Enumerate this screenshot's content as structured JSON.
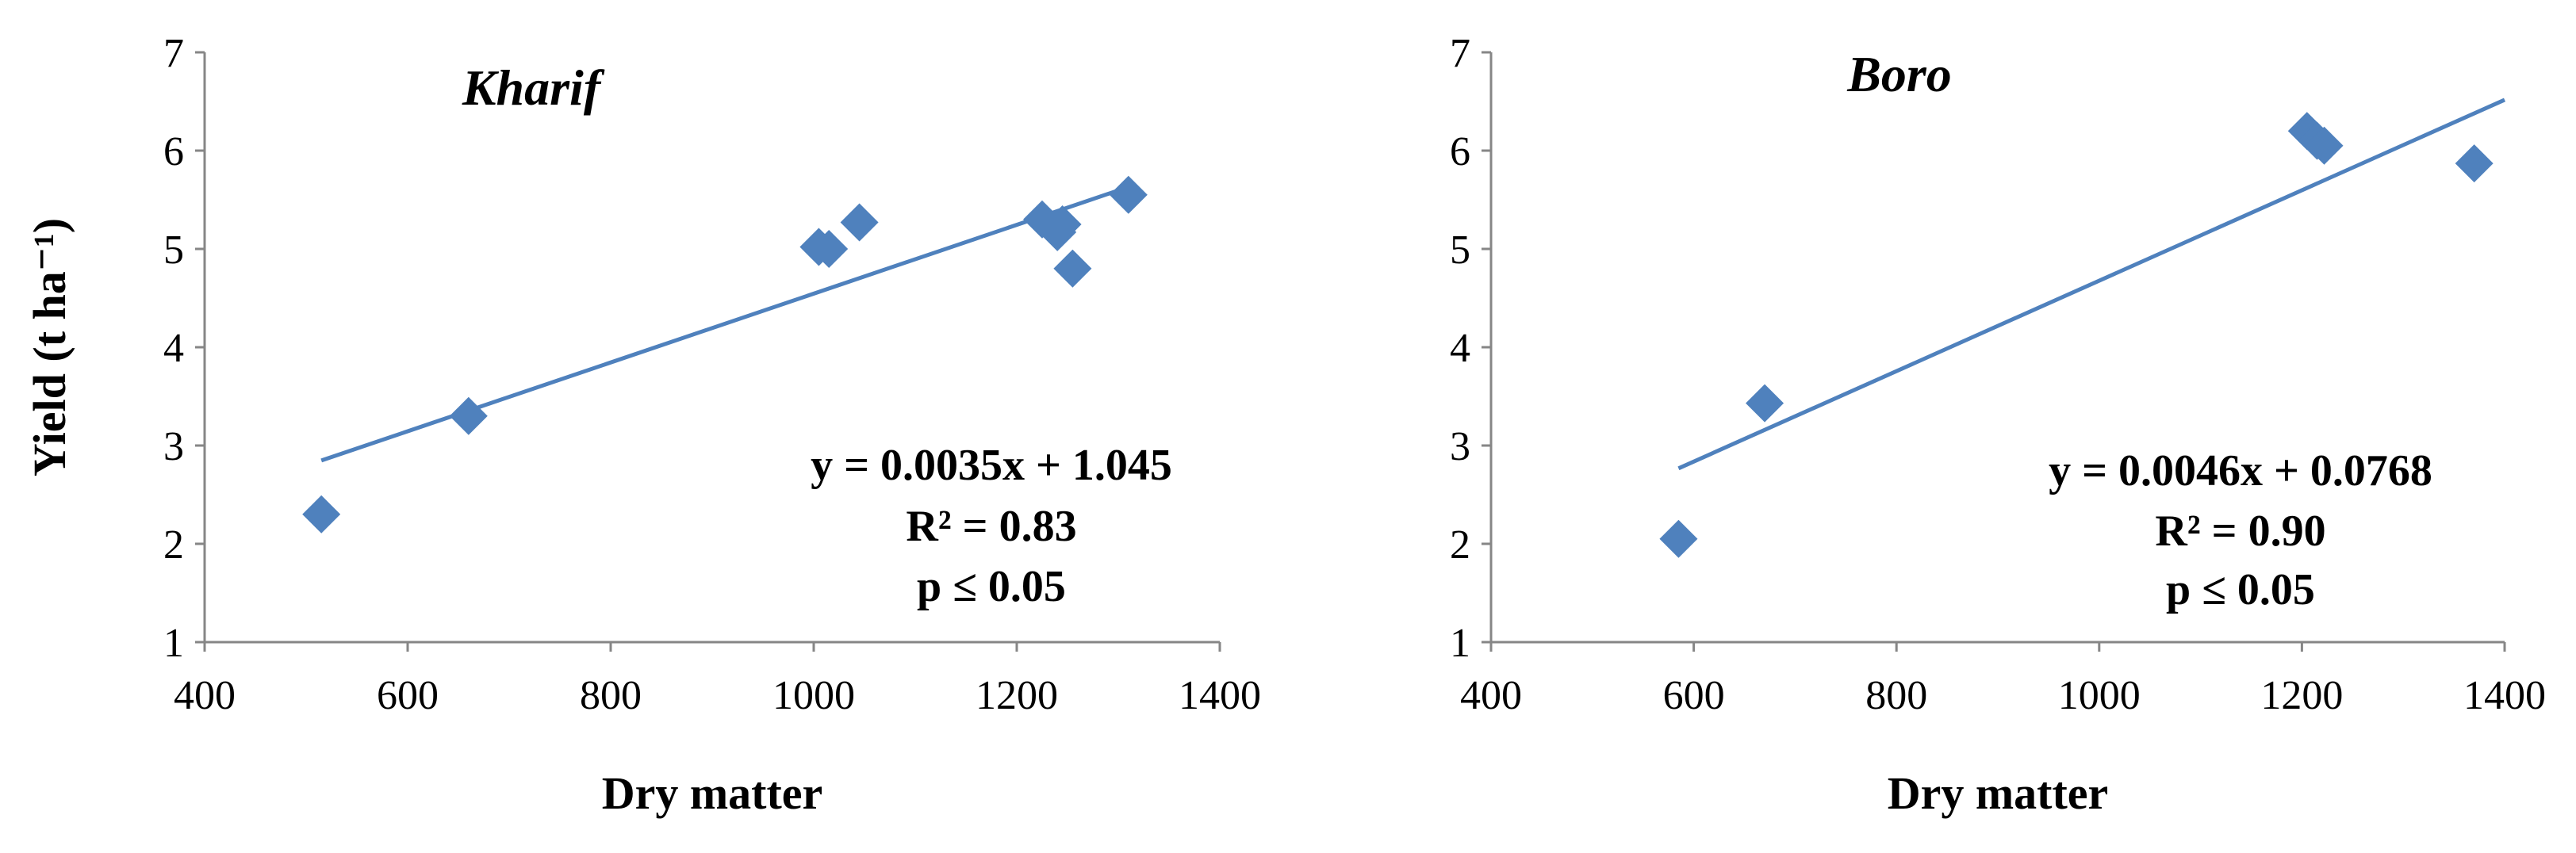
{
  "chart_data": [
    {
      "type": "scatter",
      "title": "Kharif",
      "xlabel": "Dry matter",
      "ylabel": "Yield (t ha⁻¹)",
      "xlim": [
        400,
        1400
      ],
      "ylim": [
        1,
        7
      ],
      "xticks": [
        400,
        600,
        800,
        1000,
        1200,
        1400
      ],
      "yticks": [
        1,
        2,
        3,
        4,
        5,
        6,
        7
      ],
      "grid": false,
      "marker_color": "#4F81BD",
      "trendline_color": "#4F81BD",
      "points": [
        {
          "x": 515,
          "y": 2.3
        },
        {
          "x": 660,
          "y": 3.3
        },
        {
          "x": 1005,
          "y": 5.02
        },
        {
          "x": 1015,
          "y": 5.0
        },
        {
          "x": 1045,
          "y": 5.27
        },
        {
          "x": 1225,
          "y": 5.3
        },
        {
          "x": 1240,
          "y": 5.17
        },
        {
          "x": 1245,
          "y": 5.25
        },
        {
          "x": 1255,
          "y": 4.8
        },
        {
          "x": 1310,
          "y": 5.55
        }
      ],
      "trendline": {
        "slope": 0.0035,
        "intercept": 1.045,
        "x_start": 515,
        "x_end": 1310
      },
      "annotation": [
        "y = 0.0035x + 1.045",
        "R² = 0.83",
        "p ≤ 0.05"
      ]
    },
    {
      "type": "scatter",
      "title": "Boro",
      "xlabel": "Dry matter",
      "ylabel": "",
      "xlim": [
        400,
        1400
      ],
      "ylim": [
        1,
        7
      ],
      "xticks": [
        400,
        600,
        800,
        1000,
        1200,
        1400
      ],
      "yticks": [
        1,
        2,
        3,
        4,
        5,
        6,
        7
      ],
      "grid": false,
      "marker_color": "#4F81BD",
      "trendline_color": "#4F81BD",
      "points": [
        {
          "x": 585,
          "y": 2.05
        },
        {
          "x": 670,
          "y": 3.43
        },
        {
          "x": 1205,
          "y": 6.2
        },
        {
          "x": 1215,
          "y": 6.1
        },
        {
          "x": 1222,
          "y": 6.05
        },
        {
          "x": 1370,
          "y": 5.87
        }
      ],
      "trendline": {
        "slope": 0.0046,
        "intercept": 0.0768,
        "x_start": 585,
        "x_end": 1400
      },
      "annotation": [
        "y = 0.0046x + 0.0768",
        "R² = 0.90",
        "p ≤ 0.05"
      ]
    }
  ]
}
